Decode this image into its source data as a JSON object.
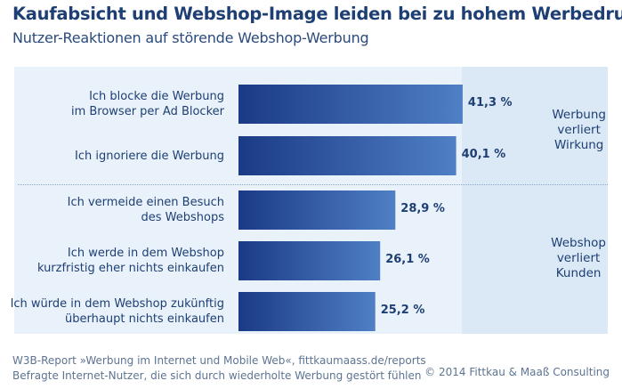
{
  "title": "Kaufabsicht und Webshop-Image leiden bei zu hohem Werbedruck",
  "subtitle": "Nutzer-Reaktionen auf störende Webshop-Werbung",
  "groups": {
    "top": [
      "Werbung",
      "verliert",
      "Wirkung"
    ],
    "bottom": [
      "Webshop",
      "verliert",
      "Kunden"
    ]
  },
  "footer": {
    "line1": "W3B-Report »Werbung im Internet und Mobile Web«, fittkaumaass.de/reports",
    "line2": "Befragte Internet-Nutzer, die sich durch wiederholte Werbung gestört fühlen",
    "copyright": "© 2014 Fittkau & Maaß Consulting"
  },
  "colors": {
    "bar_dark": "#1b3a86",
    "bar_light": "#4f7fc4",
    "text": "#1e3f74"
  },
  "chart_data": {
    "type": "bar",
    "orientation": "horizontal",
    "categories": [
      [
        "Ich blocke die Werbung",
        "im Browser per Ad Blocker"
      ],
      [
        "Ich ignoriere die Werbung"
      ],
      [
        "Ich vermeide einen Besuch",
        "des Webshops"
      ],
      [
        "Ich werde in dem Webshop",
        "kurzfristig eher nichts einkaufen"
      ],
      [
        "Ich würde in dem Webshop zukünftig",
        "überhaupt nichts einkaufen"
      ]
    ],
    "values": [
      41.3,
      40.1,
      28.9,
      26.1,
      25.2
    ],
    "value_labels": [
      "41,3 %",
      "40,1 %",
      "28,9 %",
      "26,1 %",
      "25,2 %"
    ],
    "unit": "%"
  }
}
